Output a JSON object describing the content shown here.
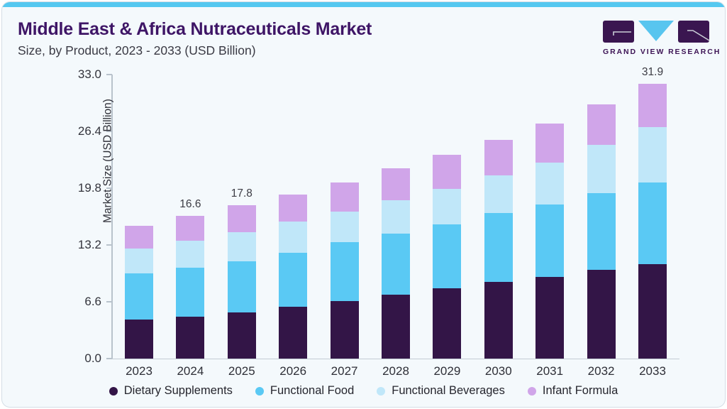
{
  "header": {
    "title": "Middle East & Africa Nutraceuticals Market",
    "subtitle": "Size, by Product, 2023 - 2033 (USD Billion)",
    "logo_text": "GRAND VIEW RESEARCH"
  },
  "colors": {
    "accent_strip": "#55c8f0",
    "title_purple": "#3e1566",
    "logo_purple": "#3a1650",
    "logo_triangle_blue": "#58c5ef",
    "card_background": "#f4f9fc"
  },
  "chart_data": {
    "type": "bar",
    "subtype": "stacked-vertical",
    "title": "Middle East & Africa Nutraceuticals Market Size, by Product, 2023 - 2033 (USD Billion)",
    "xlabel": "",
    "ylabel": "Market Size (USD Billion)",
    "categories": [
      "2023",
      "2024",
      "2025",
      "2026",
      "2027",
      "2028",
      "2029",
      "2030",
      "2031",
      "2032",
      "2033"
    ],
    "series": [
      {
        "name": "Dietary Supplements",
        "color": "#331547",
        "values": [
          4.5,
          4.9,
          5.4,
          6.0,
          6.7,
          7.4,
          8.2,
          8.9,
          9.5,
          10.3,
          11.0
        ]
      },
      {
        "name": "Functional Food",
        "color": "#5ac9f4",
        "values": [
          5.4,
          5.7,
          5.9,
          6.3,
          6.8,
          7.1,
          7.4,
          8.0,
          8.4,
          8.9,
          9.5
        ]
      },
      {
        "name": "Functional Beverages",
        "color": "#c0e7f9",
        "values": [
          2.9,
          3.1,
          3.4,
          3.6,
          3.6,
          3.9,
          4.1,
          4.4,
          4.9,
          5.6,
          6.4
        ]
      },
      {
        "name": "Infant Formula",
        "color": "#d0a5e9",
        "values": [
          2.6,
          2.9,
          3.1,
          3.2,
          3.4,
          3.7,
          4.0,
          4.1,
          4.5,
          4.7,
          5.0
        ]
      }
    ],
    "totals_shown": {
      "2024": "16.6",
      "2025": "17.8",
      "2033": "31.9"
    },
    "y_ticks": [
      "0.0",
      "6.6",
      "13.2",
      "19.8",
      "26.4",
      "33.0"
    ],
    "ylim": [
      0,
      33
    ],
    "grid": false,
    "legend_position": "bottom"
  }
}
